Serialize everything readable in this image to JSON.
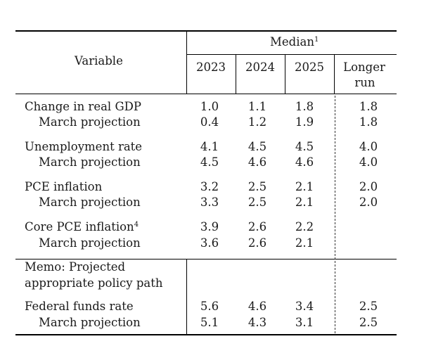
{
  "header": {
    "variable_label": "Variable",
    "median_label": "Median",
    "median_footnote": "1",
    "years": [
      "2023",
      "2024",
      "2025"
    ],
    "longer_run_line1": "Longer",
    "longer_run_line2": "run"
  },
  "rows": {
    "gdp": {
      "label": "Change in real GDP",
      "values": [
        "1.0",
        "1.1",
        "1.8",
        "1.8"
      ]
    },
    "gdp_march": {
      "label": "March projection",
      "values": [
        "0.4",
        "1.2",
        "1.9",
        "1.8"
      ]
    },
    "unemp": {
      "label": "Unemployment rate",
      "values": [
        "4.1",
        "4.5",
        "4.5",
        "4.0"
      ]
    },
    "unemp_march": {
      "label": "March projection",
      "values": [
        "4.5",
        "4.6",
        "4.6",
        "4.0"
      ]
    },
    "pce": {
      "label": "PCE inflation",
      "values": [
        "3.2",
        "2.5",
        "2.1",
        "2.0"
      ]
    },
    "pce_march": {
      "label": "March projection",
      "values": [
        "3.3",
        "2.5",
        "2.1",
        "2.0"
      ]
    },
    "core": {
      "label": "Core PCE inflation",
      "footnote": "4",
      "values": [
        "3.9",
        "2.6",
        "2.2",
        ""
      ]
    },
    "core_march": {
      "label": "March projection",
      "values": [
        "3.6",
        "2.6",
        "2.1",
        ""
      ]
    },
    "fed": {
      "label": "Federal funds rate",
      "values": [
        "5.6",
        "4.6",
        "3.4",
        "2.5"
      ]
    },
    "fed_march": {
      "label": "March projection",
      "values": [
        "5.1",
        "4.3",
        "3.1",
        "2.5"
      ]
    }
  },
  "memo": {
    "line1": "Memo: Projected",
    "line2": "appropriate policy path"
  }
}
